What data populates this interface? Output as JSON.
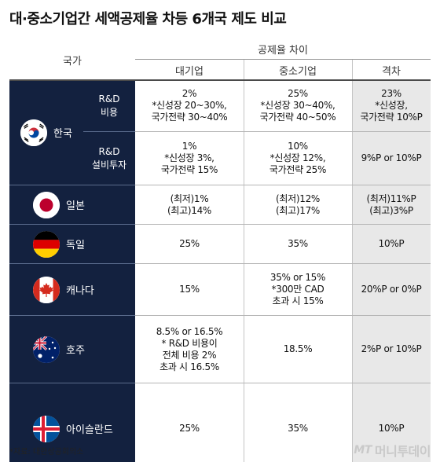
{
  "title": "대·중소기업간 세액공제율 차등 6개국 제도 비교",
  "header": {
    "country": "국가",
    "group": "공제율 차이",
    "columns": [
      "대기업",
      "중소기업",
      "격차"
    ]
  },
  "korea": {
    "name": "한국",
    "flag_icon": "korea-flag-icon",
    "rows": [
      {
        "category": [
          "R&D",
          "비용"
        ],
        "large": [
          "2%",
          "*신성장 20~30%,",
          "국가전략 30~40%"
        ],
        "sme": [
          "25%",
          "*신성장 30~40%,",
          "국가전략 40~50%"
        ],
        "gap": [
          "23%",
          "*신성장,",
          "국가전략 10%P"
        ]
      },
      {
        "category": [
          "R&D",
          "설비투자"
        ],
        "large": [
          "1%",
          "*신성장 3%,",
          "국가전략 15%"
        ],
        "sme": [
          "10%",
          "*신성장 12%,",
          "국가전략 25%"
        ],
        "gap": [
          "9%P or 10%P"
        ]
      }
    ]
  },
  "countries": [
    {
      "name": "일본",
      "flag_icon": "japan-flag-icon",
      "large": [
        "(최저)1%",
        "(최고)14%"
      ],
      "sme": [
        "(최저)12%",
        "(최고)17%"
      ],
      "gap": [
        "(최저)11%P",
        "(최고)3%P"
      ]
    },
    {
      "name": "독일",
      "flag_icon": "germany-flag-icon",
      "large": [
        "25%"
      ],
      "sme": [
        "35%"
      ],
      "gap": [
        "10%P"
      ]
    },
    {
      "name": "캐나다",
      "flag_icon": "canada-flag-icon",
      "large": [
        "15%"
      ],
      "sme": [
        "35% or 15%",
        "*300만 CAD",
        "초과 시 15%"
      ],
      "gap": [
        "20%P or 0%P"
      ]
    },
    {
      "name": "호주",
      "flag_icon": "australia-flag-icon",
      "large": [
        "8.5% or 16.5%",
        "* R&D 비용이",
        "전체 비용 2%",
        "초과 시 16.5%"
      ],
      "sme": [
        "18.5%"
      ],
      "gap": [
        "2%P or 10%P"
      ]
    },
    {
      "name": "아이슬란드",
      "flag_icon": "iceland-flag-icon",
      "large": [
        "25%"
      ],
      "sme": [
        "35%"
      ],
      "gap": [
        "10%P"
      ]
    }
  ],
  "source": "*자료: 대한상공회의소",
  "brand": {
    "mt": "MT",
    "name": "머니투데이"
  },
  "colors": {
    "navy": "#13213f",
    "gap_column": "#e8e8e8"
  }
}
